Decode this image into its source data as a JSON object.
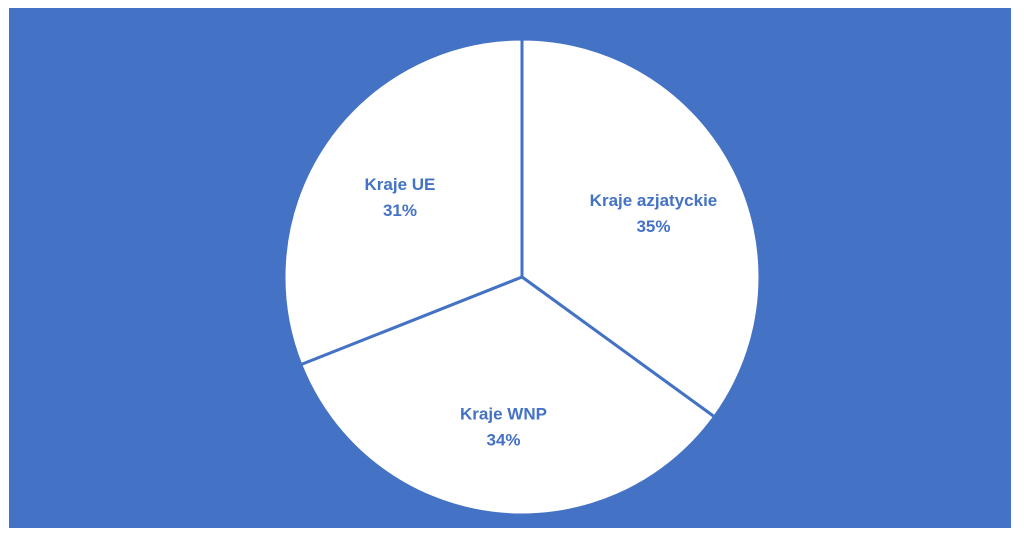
{
  "chart_data": {
    "type": "pie",
    "title": "",
    "categories": [
      "Kraje azjatyckie",
      "Kraje WNP",
      "Kraje UE"
    ],
    "values": [
      35,
      34,
      31
    ],
    "percent_labels": [
      "35%",
      "34%",
      "31%"
    ],
    "start_angle_deg": 0,
    "direction": "clockwise",
    "legend": "none",
    "data_labels": "inside"
  },
  "colors": {
    "background": "#4472C4",
    "slice_fill": "#FFFFFF",
    "slice_border": "#4472C4",
    "label_text": "#4472C4"
  }
}
